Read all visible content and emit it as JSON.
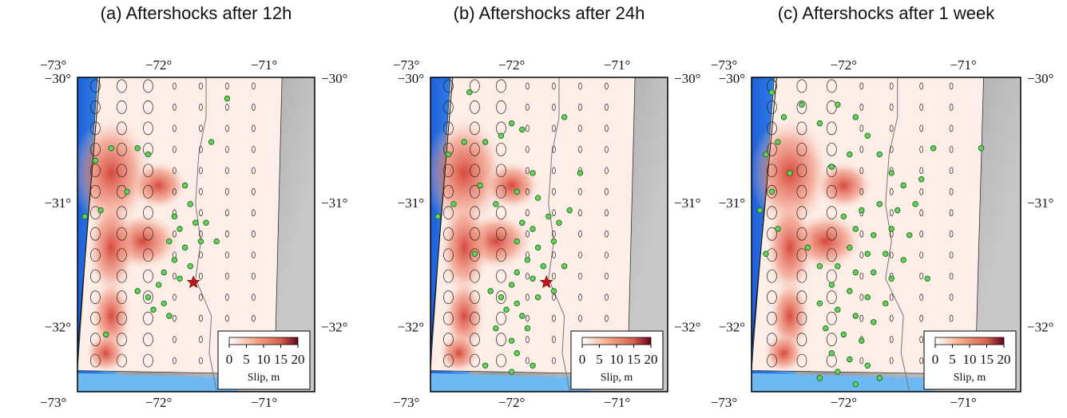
{
  "panels": [
    {
      "title": "(a) Aftershocks after 12h",
      "epicenter": [
        -71.67,
        -31.63
      ],
      "aftershocks": [
        [
          -72.45,
          -30.55
        ],
        [
          -72.6,
          -30.65
        ],
        [
          -72.2,
          -30.55
        ],
        [
          -72.1,
          -30.6
        ],
        [
          -72.3,
          -30.9
        ],
        [
          -72.55,
          -31.05
        ],
        [
          -72.7,
          -31.1
        ],
        [
          -71.75,
          -30.85
        ],
        [
          -71.7,
          -31.0
        ],
        [
          -71.85,
          -31.1
        ],
        [
          -71.8,
          -31.2
        ],
        [
          -71.65,
          -31.15
        ],
        [
          -71.9,
          -31.3
        ],
        [
          -71.75,
          -31.35
        ],
        [
          -71.6,
          -31.3
        ],
        [
          -71.85,
          -31.45
        ],
        [
          -71.7,
          -31.5
        ],
        [
          -71.95,
          -31.55
        ],
        [
          -71.8,
          -31.6
        ],
        [
          -72.0,
          -31.65
        ],
        [
          -72.1,
          -31.75
        ],
        [
          -71.95,
          -31.8
        ],
        [
          -72.05,
          -31.85
        ],
        [
          -71.9,
          -31.9
        ],
        [
          -72.2,
          -31.7
        ],
        [
          -71.55,
          -31.15
        ],
        [
          -71.45,
          -31.3
        ],
        [
          -71.5,
          -30.5
        ],
        [
          -71.35,
          -30.15
        ],
        [
          -72.5,
          -32.05
        ]
      ]
    },
    {
      "title": "(b) Aftershocks after 24h",
      "epicenter": [
        -71.67,
        -31.63
      ],
      "aftershocks": [
        [
          -72.4,
          -30.1
        ],
        [
          -72.45,
          -30.5
        ],
        [
          -72.6,
          -30.6
        ],
        [
          -72.25,
          -30.5
        ],
        [
          -72.1,
          -30.45
        ],
        [
          -72.0,
          -30.35
        ],
        [
          -71.9,
          -30.4
        ],
        [
          -72.3,
          -30.85
        ],
        [
          -72.55,
          -31.0
        ],
        [
          -72.7,
          -31.1
        ],
        [
          -72.15,
          -31.0
        ],
        [
          -71.95,
          -30.9
        ],
        [
          -71.8,
          -30.75
        ],
        [
          -71.75,
          -30.95
        ],
        [
          -71.9,
          -31.15
        ],
        [
          -71.8,
          -31.2
        ],
        [
          -71.65,
          -31.1
        ],
        [
          -71.95,
          -31.3
        ],
        [
          -71.75,
          -31.35
        ],
        [
          -71.6,
          -31.3
        ],
        [
          -71.85,
          -31.45
        ],
        [
          -71.7,
          -31.5
        ],
        [
          -71.95,
          -31.55
        ],
        [
          -71.8,
          -31.6
        ],
        [
          -72.0,
          -31.65
        ],
        [
          -72.1,
          -31.75
        ],
        [
          -71.95,
          -31.8
        ],
        [
          -72.05,
          -31.85
        ],
        [
          -71.9,
          -31.9
        ],
        [
          -72.2,
          -31.7
        ],
        [
          -71.55,
          -31.15
        ],
        [
          -71.45,
          -31.05
        ],
        [
          -71.5,
          -31.5
        ],
        [
          -71.6,
          -31.7
        ],
        [
          -71.75,
          -31.75
        ],
        [
          -71.85,
          -32.0
        ],
        [
          -72.0,
          -32.1
        ],
        [
          -72.15,
          -32.0
        ],
        [
          -71.95,
          -32.2
        ],
        [
          -72.25,
          -32.3
        ],
        [
          -71.8,
          -32.3
        ],
        [
          -71.5,
          -30.3
        ],
        [
          -71.35,
          -30.75
        ],
        [
          -72.35,
          -31.4
        ],
        [
          -72.0,
          -32.35
        ]
      ]
    },
    {
      "title": "(c) Aftershocks after 1 week",
      "aftershocks": [
        [
          -72.6,
          -30.1
        ],
        [
          -72.5,
          -30.3
        ],
        [
          -72.55,
          -30.5
        ],
        [
          -72.65,
          -30.6
        ],
        [
          -72.45,
          -30.75
        ],
        [
          -72.6,
          -30.9
        ],
        [
          -72.7,
          -31.05
        ],
        [
          -72.55,
          -31.2
        ],
        [
          -72.65,
          -31.4
        ],
        [
          -72.35,
          -30.2
        ],
        [
          -72.2,
          -30.35
        ],
        [
          -72.05,
          -30.2
        ],
        [
          -71.9,
          -30.3
        ],
        [
          -71.8,
          -30.45
        ],
        [
          -71.95,
          -30.6
        ],
        [
          -72.1,
          -30.7
        ],
        [
          -71.7,
          -30.6
        ],
        [
          -71.6,
          -30.75
        ],
        [
          -71.5,
          -30.85
        ],
        [
          -71.35,
          -30.8
        ],
        [
          -71.4,
          -31.0
        ],
        [
          -71.55,
          -31.05
        ],
        [
          -71.7,
          -31.0
        ],
        [
          -71.85,
          -31.05
        ],
        [
          -72.0,
          -31.1
        ],
        [
          -71.9,
          -31.2
        ],
        [
          -71.75,
          -31.25
        ],
        [
          -71.6,
          -31.2
        ],
        [
          -71.45,
          -31.25
        ],
        [
          -71.95,
          -31.35
        ],
        [
          -71.8,
          -31.4
        ],
        [
          -71.65,
          -31.4
        ],
        [
          -71.5,
          -31.45
        ],
        [
          -72.05,
          -31.5
        ],
        [
          -71.9,
          -31.55
        ],
        [
          -71.75,
          -31.55
        ],
        [
          -71.6,
          -31.6
        ],
        [
          -72.1,
          -31.65
        ],
        [
          -71.95,
          -31.7
        ],
        [
          -71.8,
          -31.75
        ],
        [
          -71.65,
          -31.8
        ],
        [
          -72.2,
          -31.8
        ],
        [
          -72.05,
          -31.85
        ],
        [
          -71.9,
          -31.9
        ],
        [
          -71.75,
          -31.95
        ],
        [
          -72.15,
          -32.0
        ],
        [
          -72.0,
          -32.05
        ],
        [
          -71.85,
          -32.1
        ],
        [
          -72.1,
          -32.2
        ],
        [
          -71.95,
          -32.25
        ],
        [
          -71.8,
          -32.3
        ],
        [
          -72.05,
          -32.35
        ],
        [
          -71.9,
          -32.45
        ],
        [
          -72.2,
          -32.4
        ],
        [
          -71.7,
          -32.4
        ],
        [
          -72.3,
          -31.35
        ],
        [
          -72.2,
          -31.5
        ],
        [
          -71.3,
          -31.6
        ],
        [
          -71.25,
          -30.55
        ],
        [
          -70.85,
          -30.55
        ]
      ]
    }
  ],
  "xticks": [
    {
      "value": -73,
      "label": "−73°"
    },
    {
      "value": -72,
      "label": "−72°"
    },
    {
      "value": -71,
      "label": "−71°"
    }
  ],
  "yticks": [
    {
      "value": -30,
      "label": "−30°"
    },
    {
      "value": -31,
      "label": "−31°"
    },
    {
      "value": -32,
      "label": "−32°"
    }
  ],
  "xlim": [
    -72.77,
    -70.52
  ],
  "ylim": [
    -29.98,
    -32.51
  ],
  "colorbar": {
    "lim": [
      0,
      20
    ],
    "ticks": [
      0,
      5,
      10,
      15,
      20
    ],
    "label": "Slip, m"
  }
}
